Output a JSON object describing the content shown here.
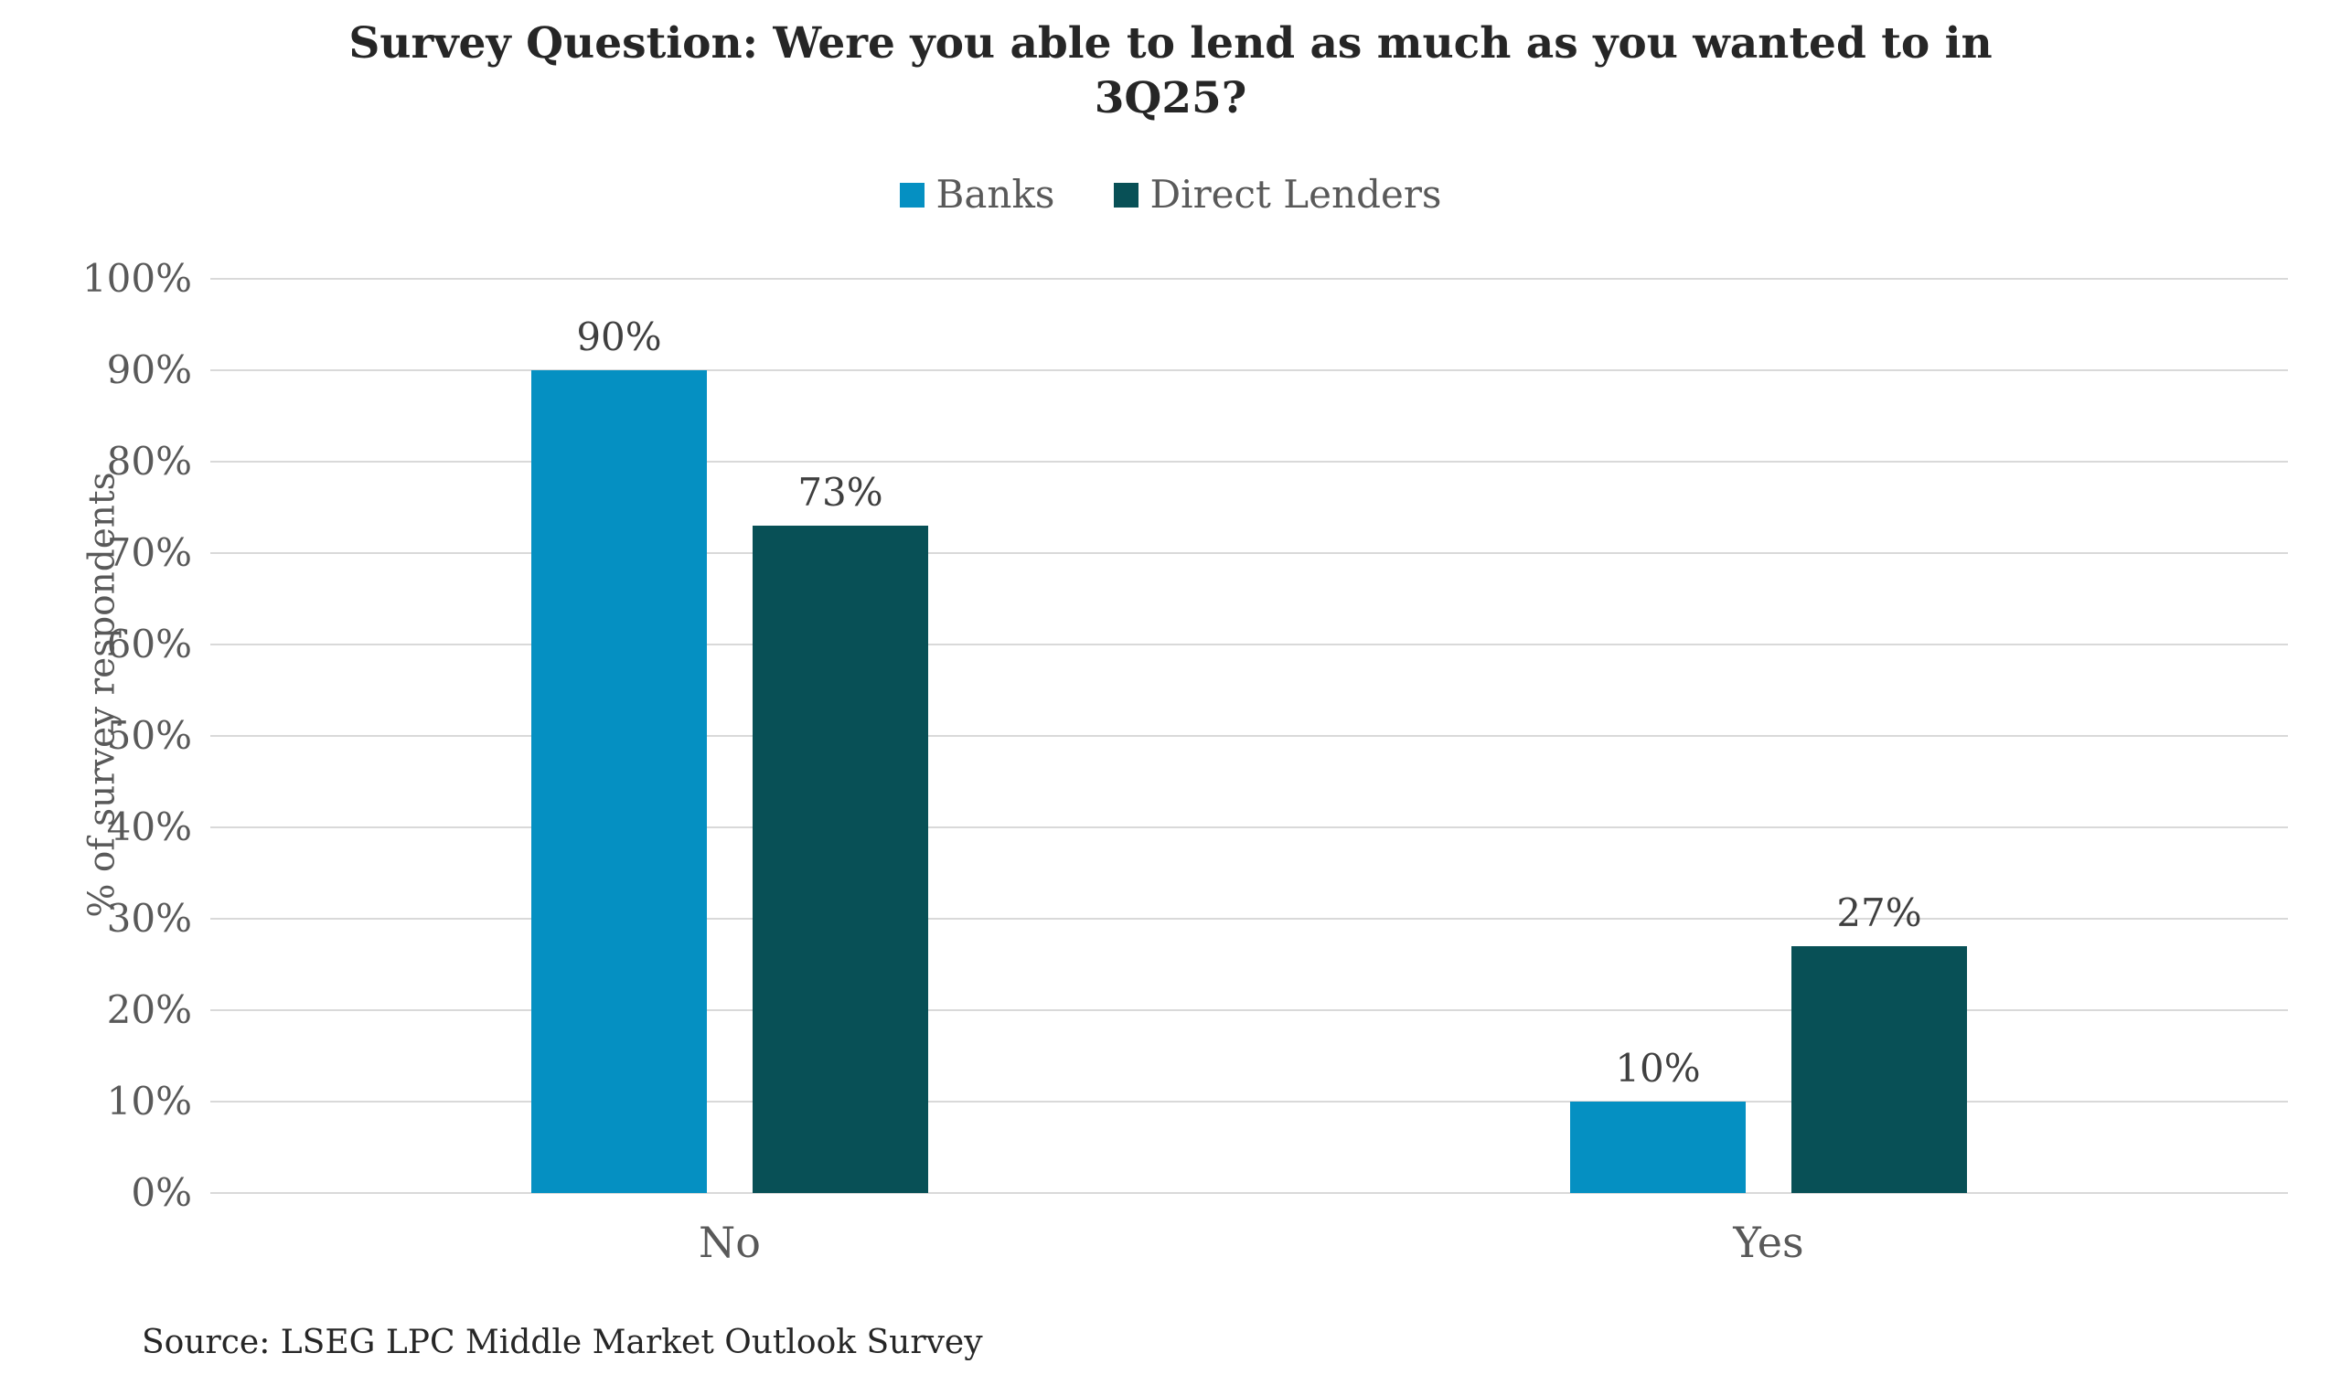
{
  "header": {
    "title_lines": [
      "Survey Question: Were you able to lend as much as you wanted to in",
      "3Q25?"
    ]
  },
  "axes": {
    "ylabel": "% of survey respondents",
    "yticks": [
      "0%",
      "10%",
      "20%",
      "30%",
      "40%",
      "50%",
      "60%",
      "70%",
      "80%",
      "90%",
      "100%"
    ]
  },
  "footer": {
    "source": "Source: LSEG LPC Middle Market Outlook Survey"
  },
  "colors": {
    "banks": "#0590C2",
    "direct_lenders": "#085056",
    "gridline": "#D9D9D9",
    "title_text": "#262626",
    "axis_text": "#595959",
    "data_label_text": "#3F3F3F"
  },
  "chart_data": {
    "type": "bar",
    "title": "Survey Question: Were you able to lend as much as you wanted to in 3Q25?",
    "categories": [
      "No",
      "Yes"
    ],
    "series": [
      {
        "name": "Banks",
        "color": "#0590C2",
        "values": [
          90,
          10
        ],
        "labels": [
          "90%",
          "10%"
        ]
      },
      {
        "name": "Direct Lenders",
        "color": "#085056",
        "values": [
          73,
          27
        ],
        "labels": [
          "73%",
          "27%"
        ]
      }
    ],
    "ylabel": "% of survey respondents",
    "ylim": [
      0,
      100
    ],
    "ytick_interval": 10,
    "grid": true,
    "legend_position": "top",
    "data_labels_shown": true,
    "source": "Source: LSEG LPC Middle Market Outlook Survey"
  }
}
